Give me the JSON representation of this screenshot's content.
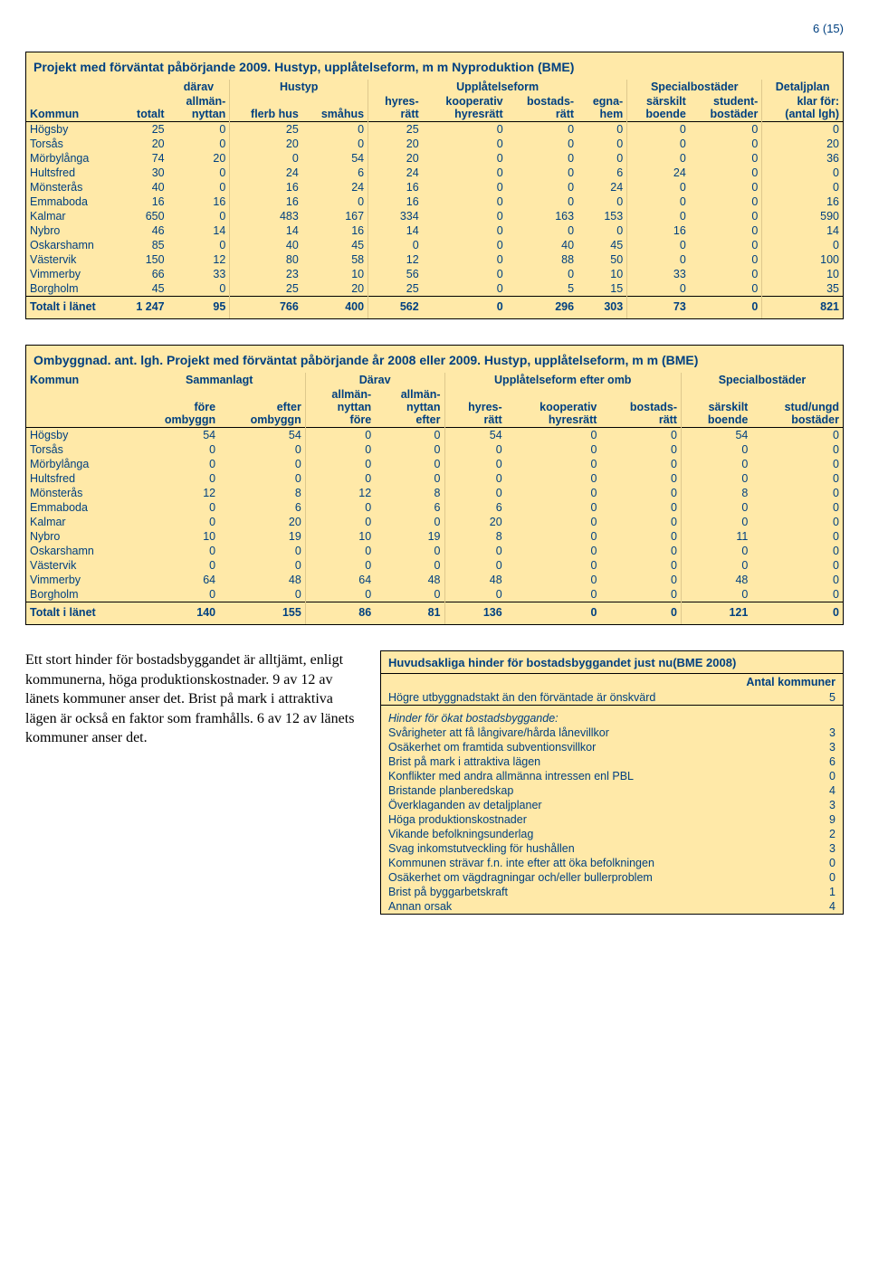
{
  "page_number": "6 (15)",
  "colors": {
    "heading": "#004080",
    "cell_text": "#004080",
    "box_bg": "#ffe9a8",
    "border": "#000000"
  },
  "table1": {
    "title": "Projekt med förväntat påbörjande 2009. Hustyp, upplåtelseform, m m Nyproduktion (BME)",
    "group_headers": [
      "därav",
      "Hustyp",
      "Upplåtelseform",
      "Specialbostäder",
      "Detaljplan"
    ],
    "columns_top": [
      "Kommun",
      "totalt",
      "allmän-\nnyttan",
      "flerb hus",
      "småhus",
      "hyres-\nrätt",
      "kooperativ\nhyresrätt",
      "bostads-\nrätt",
      "egna-\nhem",
      "särskilt\nboende",
      "student-\nbostäder",
      "klar för:\n(antal lgh)"
    ],
    "rows": [
      [
        "Högsby",
        25,
        0,
        25,
        0,
        25,
        0,
        0,
        0,
        0,
        0,
        0
      ],
      [
        "Torsås",
        20,
        0,
        20,
        0,
        20,
        0,
        0,
        0,
        0,
        0,
        20
      ],
      [
        "Mörbylånga",
        74,
        20,
        0,
        54,
        20,
        0,
        0,
        0,
        0,
        0,
        36
      ],
      [
        "Hultsfred",
        30,
        0,
        24,
        6,
        24,
        0,
        0,
        6,
        24,
        0,
        0
      ],
      [
        "Mönsterås",
        40,
        0,
        16,
        24,
        16,
        0,
        0,
        24,
        0,
        0,
        0
      ],
      [
        "Emmaboda",
        16,
        16,
        16,
        0,
        16,
        0,
        0,
        0,
        0,
        0,
        16
      ],
      [
        "Kalmar",
        650,
        0,
        483,
        167,
        334,
        0,
        163,
        153,
        0,
        0,
        590
      ],
      [
        "Nybro",
        46,
        14,
        14,
        16,
        14,
        0,
        0,
        0,
        16,
        0,
        14
      ],
      [
        "Oskarshamn",
        85,
        0,
        40,
        45,
        0,
        0,
        40,
        45,
        0,
        0,
        0
      ],
      [
        "Västervik",
        150,
        12,
        80,
        58,
        12,
        0,
        88,
        50,
        0,
        0,
        100
      ],
      [
        "Vimmerby",
        66,
        33,
        23,
        10,
        56,
        0,
        0,
        10,
        33,
        0,
        10
      ],
      [
        "Borgholm",
        45,
        0,
        25,
        20,
        25,
        0,
        5,
        15,
        0,
        0,
        35
      ]
    ],
    "total_label": "Totalt i länet",
    "total": [
      "1 247",
      95,
      766,
      400,
      562,
      0,
      296,
      303,
      73,
      0,
      821
    ]
  },
  "table2": {
    "title": "Ombyggnad. ant. lgh. Projekt med förväntat påbörjande år 2008 eller 2009. Hustyp, upplåtelseform, m m (BME)",
    "group_headers": [
      "Kommun",
      "Sammanlagt",
      "Därav",
      "Upplåtelseform efter omb",
      "Specialbostäder"
    ],
    "columns": [
      "",
      "före\nombyggn",
      "efter\nombyggn",
      "allmän-\nnyttan\nföre",
      "allmän-\nnyttan\nefter",
      "hyres-\nrätt",
      "kooperativ\nhyresrätt",
      "bostads-\nrätt",
      "särskilt\nboende",
      "stud/ungd\nbostäder"
    ],
    "rows": [
      [
        "Högsby",
        54,
        54,
        0,
        0,
        54,
        0,
        0,
        54,
        0
      ],
      [
        "Torsås",
        0,
        0,
        0,
        0,
        0,
        0,
        0,
        0,
        0
      ],
      [
        "Mörbylånga",
        0,
        0,
        0,
        0,
        0,
        0,
        0,
        0,
        0
      ],
      [
        "Hultsfred",
        0,
        0,
        0,
        0,
        0,
        0,
        0,
        0,
        0
      ],
      [
        "Mönsterås",
        12,
        8,
        12,
        8,
        0,
        0,
        0,
        8,
        0
      ],
      [
        "Emmaboda",
        0,
        6,
        0,
        6,
        6,
        0,
        0,
        0,
        0
      ],
      [
        "Kalmar",
        0,
        20,
        0,
        0,
        20,
        0,
        0,
        0,
        0
      ],
      [
        "Nybro",
        10,
        19,
        10,
        19,
        8,
        0,
        0,
        11,
        0
      ],
      [
        "Oskarshamn",
        0,
        0,
        0,
        0,
        0,
        0,
        0,
        0,
        0
      ],
      [
        "Västervik",
        0,
        0,
        0,
        0,
        0,
        0,
        0,
        0,
        0
      ],
      [
        "Vimmerby",
        64,
        48,
        64,
        48,
        48,
        0,
        0,
        48,
        0
      ],
      [
        "Borgholm",
        0,
        0,
        0,
        0,
        0,
        0,
        0,
        0,
        0
      ]
    ],
    "total_label": "Totalt i länet",
    "total": [
      140,
      155,
      86,
      81,
      136,
      0,
      0,
      121,
      0
    ]
  },
  "paragraph": "Ett stort hinder för bostadsbyggandet är alltjämt, enligt kommunerna, höga produktionskostnader. 9 av 12 av länets kommuner anser det. Brist på mark i attraktiva lägen är också en faktor som framhålls. 6 av 12 av länets kommuner anser det.",
  "hinder": {
    "title": "Huvudsakliga hinder för bostadsbyggandet just nu(BME 2008)",
    "subhead": "Antal kommuner",
    "top_row": {
      "label": "Högre utbyggnadstakt än den förväntade är önskvärd",
      "value": 5
    },
    "section_label": "Hinder för ökat bostadsbyggande:",
    "rows": [
      {
        "label": "Svårigheter att få långivare/hårda lånevillkor",
        "value": 3
      },
      {
        "label": "Osäkerhet om framtida subventionsvillkor",
        "value": 3
      },
      {
        "label": "Brist på mark i attraktiva lägen",
        "value": 6
      },
      {
        "label": "Konflikter med andra allmänna intressen enl PBL",
        "value": 0
      },
      {
        "label": "Bristande planberedskap",
        "value": 4
      },
      {
        "label": "Överklaganden av detaljplaner",
        "value": 3
      },
      {
        "label": "Höga produktionskostnader",
        "value": 9
      },
      {
        "label": "Vikande befolkningsunderlag",
        "value": 2
      },
      {
        "label": "Svag inkomstutveckling för hushållen",
        "value": 3
      },
      {
        "label": "Kommunen strävar f.n. inte efter att öka befolkningen",
        "value": 0
      },
      {
        "label": "Osäkerhet om vägdragningar och/eller bullerproblem",
        "value": 0
      },
      {
        "label": "Brist på byggarbetskraft",
        "value": 1
      },
      {
        "label": "Annan orsak",
        "value": 4
      }
    ]
  }
}
